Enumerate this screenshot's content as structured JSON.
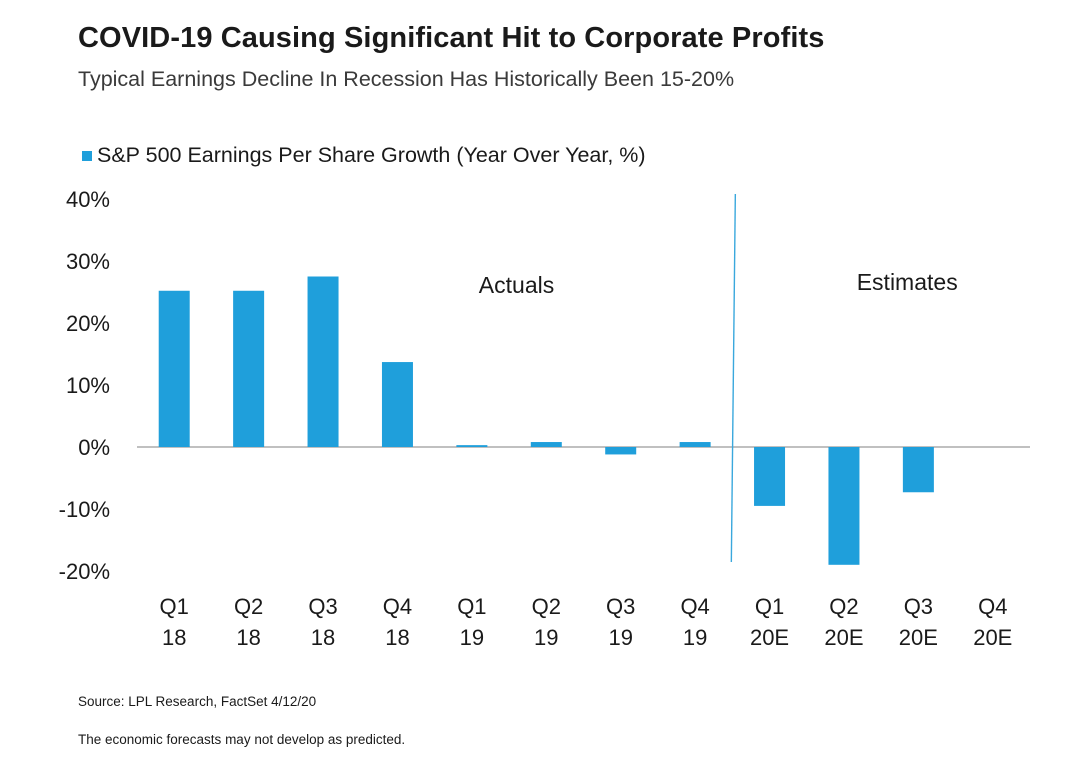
{
  "header": {
    "title": "COVID-19 Causing Significant Hit to Corporate Profits",
    "subtitle": "Typical Earnings Decline In Recession Has Historically Been 15-20%"
  },
  "footer": {
    "source": "Source: LPL Research, FactSet 4/12/20",
    "disclaimer": "The economic forecasts may not develop as predicted."
  },
  "colors": {
    "bar": "#1f9fdb",
    "divider": "#3aa8dd",
    "axis": "#9a9a9a"
  },
  "chart_data": {
    "type": "bar",
    "title": "COVID-19 Causing Significant Hit to Corporate Profits",
    "subtitle": "Typical Earnings Decline In Recession Has Historically Been 15-20%",
    "categories": [
      [
        "Q1",
        "18"
      ],
      [
        "Q2",
        "18"
      ],
      [
        "Q3",
        "18"
      ],
      [
        "Q4",
        "18"
      ],
      [
        "Q1",
        "19"
      ],
      [
        "Q2",
        "19"
      ],
      [
        "Q3",
        "19"
      ],
      [
        "Q4",
        "19"
      ],
      [
        "Q1",
        "20E"
      ],
      [
        "Q2",
        "20E"
      ],
      [
        "Q3",
        "20E"
      ],
      [
        "Q4",
        "20E"
      ]
    ],
    "series": [
      {
        "name": "S&P 500 Earnings Per Share Growth (Year Over Year, %)",
        "values": [
          25.2,
          25.2,
          27.5,
          13.7,
          0.3,
          0.8,
          -1.2,
          0.8,
          -9.5,
          -19.0,
          -7.3,
          null
        ]
      }
    ],
    "ylim": [
      -20,
      40
    ],
    "yticks": [
      40,
      30,
      20,
      10,
      0,
      -10,
      -20
    ],
    "ytick_labels": [
      "40%",
      "30%",
      "20%",
      "10%",
      "0%",
      "-10%",
      "-20%"
    ],
    "legend_position": "top-left",
    "grid": false,
    "annotations": [
      {
        "text": "Actuals",
        "region": "left"
      },
      {
        "text": "Estimates",
        "region": "right"
      }
    ],
    "divider_between": [
      "Q4 19",
      "Q1 20E"
    ]
  }
}
